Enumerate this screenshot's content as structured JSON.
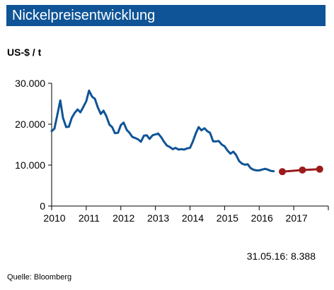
{
  "header": {
    "title": "Nickelpreisentwicklung"
  },
  "unit_label": "US-$ / t",
  "footnote": "31.05.16: 8.388",
  "source": "Quelle: Bloomberg",
  "colors": {
    "title_bg": "#0f5496",
    "history_line": "#0f5496",
    "forecast_line": "#9b1b1b"
  },
  "chart_data": {
    "type": "line",
    "title": "Nickelpreisentwicklung",
    "ylabel": "US-$ / t",
    "xlim": [
      2010,
      2018
    ],
    "ylim": [
      0,
      30000
    ],
    "y_ticks": [
      0,
      10000,
      20000,
      30000
    ],
    "y_tick_labels": [
      "0",
      "10.000",
      "20.000",
      "30.000"
    ],
    "x_ticks": [
      2010,
      2011,
      2012,
      2013,
      2014,
      2015,
      2016,
      2017
    ],
    "x_tick_labels": [
      "2010",
      "2011",
      "2012",
      "2013",
      "2014",
      "2015",
      "2016",
      "2017"
    ],
    "grid": false,
    "series": [
      {
        "x": [
          2010.0,
          2010.08,
          2010.17,
          2010.25,
          2010.33,
          2010.42,
          2010.5,
          2010.58,
          2010.67,
          2010.75,
          2010.83,
          2010.92,
          2011.0,
          2011.08,
          2011.17,
          2011.25,
          2011.33,
          2011.42,
          2011.5,
          2011.58,
          2011.67,
          2011.75,
          2011.83,
          2011.92,
          2012.0,
          2012.08,
          2012.17,
          2012.25,
          2012.33,
          2012.42,
          2012.5,
          2012.58,
          2012.67,
          2012.75,
          2012.83,
          2012.92,
          2013.0,
          2013.08,
          2013.17,
          2013.25,
          2013.33,
          2013.42,
          2013.5,
          2013.58,
          2013.67,
          2013.75,
          2013.83,
          2013.92,
          2014.0,
          2014.08,
          2014.17,
          2014.25,
          2014.33,
          2014.42,
          2014.5,
          2014.58,
          2014.67,
          2014.75,
          2014.83,
          2014.92,
          2015.0,
          2015.08,
          2015.17,
          2015.25,
          2015.33,
          2015.42,
          2015.5,
          2015.58,
          2015.67,
          2015.75,
          2015.83,
          2015.92,
          2016.0,
          2016.08,
          2016.17,
          2016.25,
          2016.33,
          2016.42
        ],
        "values": [
          18300,
          18900,
          22500,
          25800,
          21500,
          19300,
          19400,
          21500,
          22800,
          23600,
          22900,
          24300,
          25600,
          28200,
          26700,
          26200,
          24200,
          22500,
          23300,
          22000,
          19900,
          19300,
          17800,
          17900,
          19800,
          20400,
          18600,
          17900,
          16900,
          16600,
          16300,
          15700,
          17200,
          17300,
          16400,
          17300,
          17500,
          17700,
          16800,
          15700,
          14800,
          14400,
          13900,
          14200,
          13800,
          13900,
          13800,
          14100,
          14200,
          15700,
          17800,
          19300,
          18500,
          19000,
          18300,
          17900,
          15800,
          15800,
          15900,
          15000,
          14600,
          13600,
          12800,
          13300,
          12500,
          11000,
          10400,
          10100,
          10200,
          9300,
          8900,
          8700,
          8700,
          8900,
          9100,
          8900,
          8600,
          8500
        ]
      },
      {
        "x": [
          2016.67,
          2017.25,
          2017.75
        ],
        "values": [
          8400,
          8800,
          9000
        ]
      }
    ]
  }
}
